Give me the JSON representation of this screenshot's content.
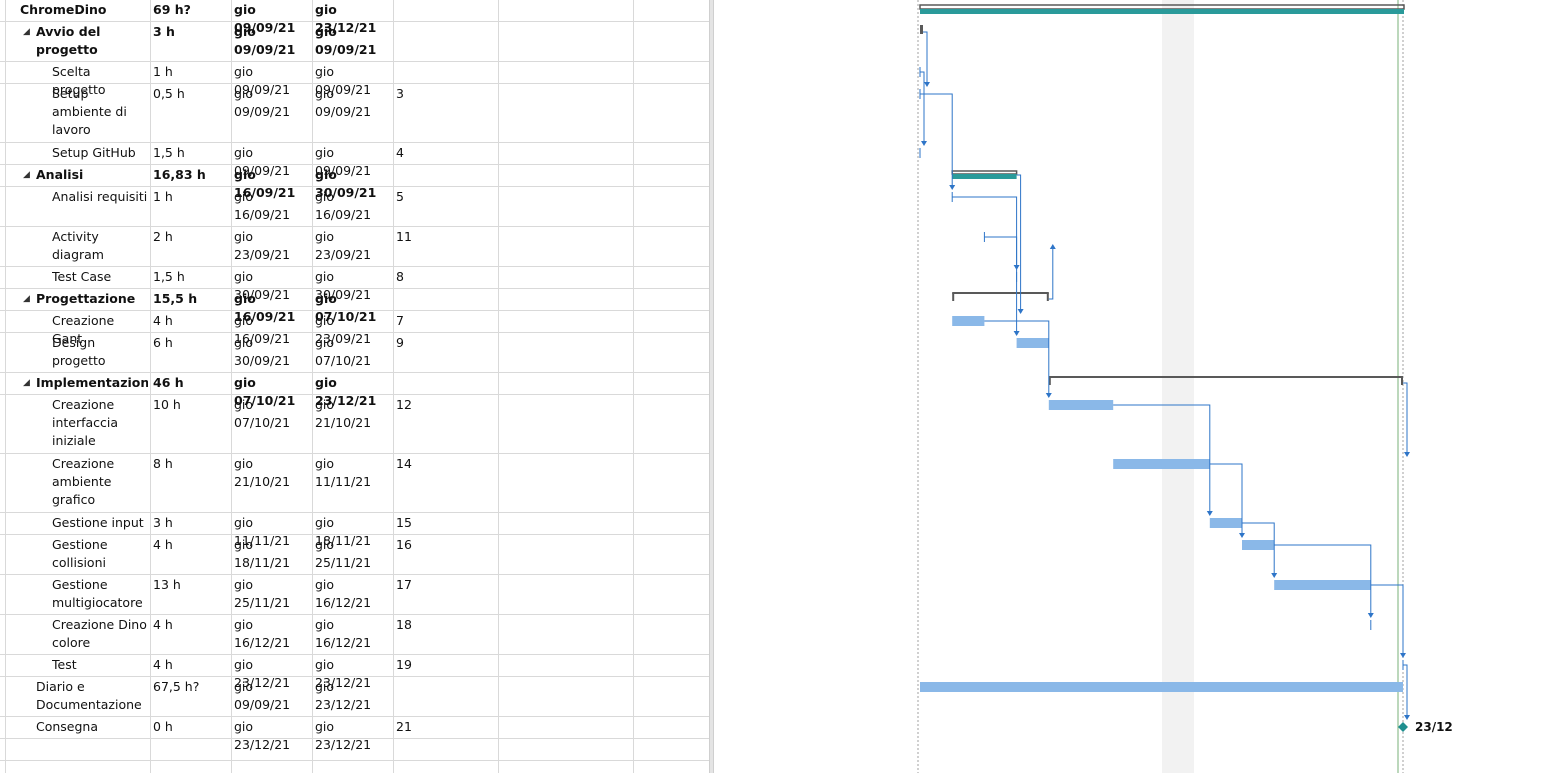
{
  "tasks": [
    {
      "name": "ChromeDino",
      "duration": "69 h?",
      "start": "gio 09/09/21",
      "finish": "gio 23/12/21",
      "pred": "",
      "level": 0,
      "summary": true,
      "collapse": ""
    },
    {
      "name": "Avvio del progetto",
      "duration": "3 h",
      "start": "gio 09/09/21",
      "finish": "gio 09/09/21",
      "pred": "",
      "level": 1,
      "summary": true,
      "collapse": "◢"
    },
    {
      "name": "Scelta progetto",
      "duration": "1 h",
      "start": "gio 09/09/21",
      "finish": "gio 09/09/21",
      "pred": "",
      "level": 2,
      "summary": false,
      "collapse": ""
    },
    {
      "name": "Setup ambiente di lavoro",
      "duration": "0,5 h",
      "start": "gio 09/09/21",
      "finish": "gio 09/09/21",
      "pred": "3",
      "level": 2,
      "summary": false,
      "collapse": ""
    },
    {
      "name": "Setup GitHub",
      "duration": "1,5 h",
      "start": "gio 09/09/21",
      "finish": "gio 09/09/21",
      "pred": "4",
      "level": 2,
      "summary": false,
      "collapse": ""
    },
    {
      "name": "Analisi",
      "duration": "16,83 h",
      "start": "gio 16/09/21",
      "finish": "gio 30/09/21",
      "pred": "",
      "level": 1,
      "summary": true,
      "collapse": "◢"
    },
    {
      "name": "Analisi requisiti",
      "duration": "1 h",
      "start": "gio 16/09/21",
      "finish": "gio 16/09/21",
      "pred": "5",
      "level": 2,
      "summary": false,
      "collapse": ""
    },
    {
      "name": "Activity diagram",
      "duration": "2 h",
      "start": "gio 23/09/21",
      "finish": "gio 23/09/21",
      "pred": "11",
      "level": 2,
      "summary": false,
      "collapse": ""
    },
    {
      "name": "Test Case",
      "duration": "1,5 h",
      "start": "gio 30/09/21",
      "finish": "gio 30/09/21",
      "pred": "8",
      "level": 2,
      "summary": false,
      "collapse": ""
    },
    {
      "name": "Progettazione",
      "duration": "15,5 h",
      "start": "gio 16/09/21",
      "finish": "gio 07/10/21",
      "pred": "",
      "level": 1,
      "summary": true,
      "collapse": "◢"
    },
    {
      "name": "Creazione Gant",
      "duration": "4 h",
      "start": "gio 16/09/21",
      "finish": "gio 23/09/21",
      "pred": "7",
      "level": 2,
      "summary": false,
      "collapse": ""
    },
    {
      "name": "Design progetto",
      "duration": "6 h",
      "start": "gio 30/09/21",
      "finish": "gio 07/10/21",
      "pred": "9",
      "level": 2,
      "summary": false,
      "collapse": ""
    },
    {
      "name": "Implementazione",
      "duration": "46 h",
      "start": "gio 07/10/21",
      "finish": "gio 23/12/21",
      "pred": "",
      "level": 1,
      "summary": true,
      "collapse": "◢"
    },
    {
      "name": "Creazione interfaccia iniziale",
      "duration": "10 h",
      "start": "gio 07/10/21",
      "finish": "gio 21/10/21",
      "pred": "12",
      "level": 2,
      "summary": false,
      "collapse": ""
    },
    {
      "name": "Creazione ambiente grafico",
      "duration": "8 h",
      "start": "gio 21/10/21",
      "finish": "gio 11/11/21",
      "pred": "14",
      "level": 2,
      "summary": false,
      "collapse": ""
    },
    {
      "name": "Gestione input",
      "duration": "3 h",
      "start": "gio 11/11/21",
      "finish": "gio 18/11/21",
      "pred": "15",
      "level": 2,
      "summary": false,
      "collapse": ""
    },
    {
      "name": "Gestione collisioni",
      "duration": "4 h",
      "start": "gio 18/11/21",
      "finish": "gio 25/11/21",
      "pred": "16",
      "level": 2,
      "summary": false,
      "collapse": ""
    },
    {
      "name": "Gestione multigiocatore",
      "duration": "13 h",
      "start": "gio 25/11/21",
      "finish": "gio 16/12/21",
      "pred": "17",
      "level": 2,
      "summary": false,
      "collapse": ""
    },
    {
      "name": "Creazione Dino colore",
      "duration": "4 h",
      "start": "gio 16/12/21",
      "finish": "gio 16/12/21",
      "pred": "18",
      "level": 2,
      "summary": false,
      "collapse": ""
    },
    {
      "name": "Test",
      "duration": "4 h",
      "start": "gio 23/12/21",
      "finish": "gio 23/12/21",
      "pred": "19",
      "level": 2,
      "summary": false,
      "collapse": ""
    },
    {
      "name": "Diario e Documentazione",
      "duration": "67,5 h?",
      "start": "gio 09/09/21",
      "finish": "gio 23/12/21",
      "pred": "",
      "level": 1,
      "summary": false,
      "collapse": ""
    },
    {
      "name": "Consegna",
      "duration": "0 h",
      "start": "gio 23/12/21",
      "finish": "gio 23/12/21",
      "pred": "21",
      "level": 1,
      "summary": false,
      "collapse": ""
    }
  ],
  "milestone_label": "23/12",
  "colors": {
    "task_bar": "#8ab8e8",
    "summary_bar": "#595959",
    "project_summary": "#2a9a9a",
    "link": "#2e75c8",
    "milestone": "#1f8f8f",
    "weekend_shade": "#f2f2f2"
  }
}
